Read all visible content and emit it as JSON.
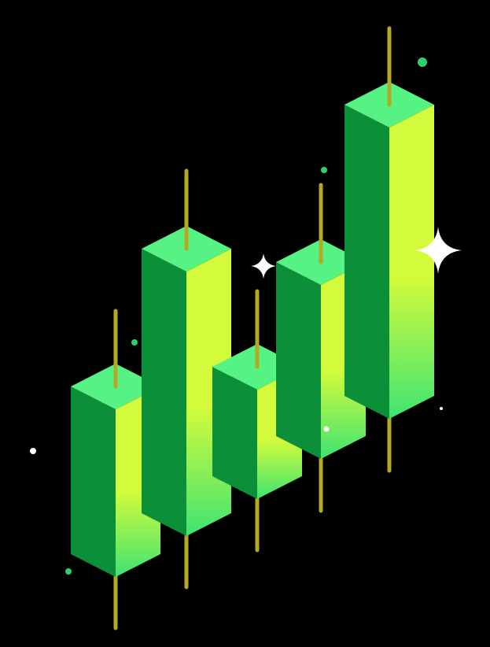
{
  "illustration": {
    "subject": "isometric-candlestick-bars",
    "candle_count": 5,
    "decorations": [
      "sparkle-icon",
      "sparkle-icon",
      "dot",
      "dot",
      "dot",
      "dot",
      "dot",
      "dot"
    ]
  },
  "colors": {
    "background": "#000000",
    "top_face": "#56F283",
    "left_face": "#0B8F38",
    "right_face_top": "#D3FB3B",
    "right_face_bottom": "#3FE372",
    "wick": "#B3A925",
    "sparkle": "#FFFFFF",
    "green_dot": "#2ECF6E",
    "white_dot": "#FFFFFF"
  }
}
